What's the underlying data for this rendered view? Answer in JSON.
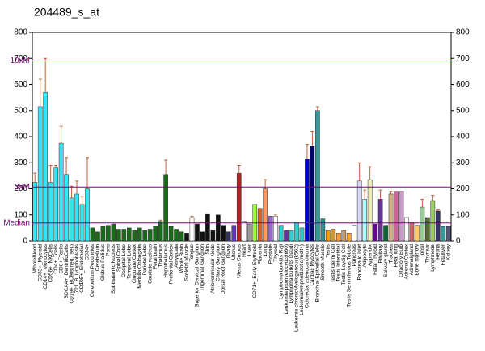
{
  "chart_data": {
    "type": "bar",
    "title": "204489_s_at",
    "categories": [
      "WholeBlood",
      "CD33+_Myeloid",
      "CD14+_Monocytes",
      "CD56+_NKCells",
      "CD4+_Tcells",
      "CD8+_Tcells",
      "BDCA4+_DentriticCells",
      "CD19+_BCells(neg._sel.)",
      "721_B_lymphoblasts",
      "CD105+_Endothelial",
      "CD34+",
      "Cerebellum Peduncles",
      "Cerebellum",
      "Globus Pallidus",
      "Pons",
      "Subthalamic Nucleus",
      "Spinal Cord",
      "Occipital Lobe",
      "Temporal Lobe",
      "Cingulate Cortex",
      "Medulla Oblongata",
      "Parietal Lobe",
      "Caudate nucleus",
      "Fetal brain",
      "Thalamus",
      "Hypothalamus",
      "Prefrontal Cortex",
      "Amygdala",
      "Whole Brain",
      "Skeletal Muscle",
      "Tongue",
      "Superior Cervical Ganglion",
      "Trigeminal Ganglion",
      "Skin",
      "Atrioventricular Node",
      "Ciliary Ganglion",
      "Dorsal Root Ganglion",
      "Ovary",
      "Uterus",
      "Uterus Corpus",
      "Heart",
      "Liver",
      "CD71+_Early Erythroid",
      "Placenta",
      "Lung",
      "Prostate",
      "Thyroid",
      "Lymphoma burkitts Raji",
      "Leukemia promyelocytic(hl60)",
      "Lymphoma burkitts Daudi",
      "Leukemia chronicMyelogenous(k562)",
      "Leukemialymphoblastic(molt4)",
      "Colorectal adenocarcinoma",
      "Cardiac Myocytes",
      "Bronchial Epithelial Cells",
      "Smooth Muscle",
      "Testis",
      "Testis Germ Cell",
      "Testis Interstitial",
      "Testis Leydig Cell",
      "Testis Seminiferous Tubule",
      "Pancreas",
      "Pancreatic Islet",
      "Adipocyte",
      "Appendix",
      "Fetal Thyroid",
      "Pituitary",
      "Salivary gland",
      "Trachea",
      "Fetal lung",
      "Olfactory Bulb",
      "Adrenal Cortex",
      "Adrenalgland",
      "Bone marrow",
      "Tonsil",
      "Thymus",
      "Lymphnode",
      "Retina",
      "Fetalliver",
      "Kidney"
    ],
    "values": [
      225,
      515,
      570,
      225,
      280,
      375,
      255,
      165,
      180,
      140,
      200,
      50,
      35,
      55,
      60,
      65,
      45,
      45,
      50,
      40,
      50,
      40,
      45,
      55,
      75,
      255,
      55,
      45,
      35,
      30,
      90,
      65,
      35,
      105,
      40,
      100,
      60,
      35,
      60,
      260,
      75,
      65,
      140,
      125,
      200,
      95,
      95,
      60,
      40,
      40,
      70,
      50,
      315,
      365,
      500,
      85,
      40,
      45,
      30,
      40,
      30,
      60,
      230,
      160,
      235,
      65,
      160,
      60,
      180,
      190,
      190,
      90,
      70,
      60,
      130,
      90,
      155,
      115,
      55,
      55
    ],
    "errors": [
      35,
      105,
      130,
      65,
      10,
      65,
      65,
      45,
      50,
      30,
      120,
      null,
      null,
      null,
      null,
      null,
      null,
      null,
      null,
      null,
      null,
      null,
      null,
      null,
      5,
      55,
      null,
      null,
      null,
      null,
      5,
      null,
      null,
      null,
      null,
      null,
      null,
      null,
      null,
      30,
      null,
      null,
      null,
      null,
      35,
      null,
      5,
      null,
      null,
      null,
      null,
      null,
      55,
      55,
      15,
      null,
      null,
      null,
      null,
      null,
      null,
      null,
      70,
      35,
      50,
      null,
      35,
      null,
      10,
      null,
      null,
      null,
      null,
      null,
      30,
      null,
      20,
      5,
      null,
      null
    ],
    "colors": [
      "#33e6f2",
      "#33e6f2",
      "#33e6f2",
      "#33e6f2",
      "#33e6f2",
      "#33e6f2",
      "#33e6f2",
      "#33e6f2",
      "#33e6f2",
      "#33e6f2",
      "#33e6f2",
      "#1a6b1a",
      "#1a6b1a",
      "#1a6b1a",
      "#1a6b1a",
      "#1a6b1a",
      "#1a6b1a",
      "#1a6b1a",
      "#1a6b1a",
      "#1a6b1a",
      "#1a6b1a",
      "#1a6b1a",
      "#1a6b1a",
      "#1a6b1a",
      "#1a6b1a",
      "#1a6b1a",
      "#1a6b1a",
      "#1a6b1a",
      "#1a6b1a",
      "#111111",
      "#ffffff",
      "#111111",
      "#111111",
      "#111111",
      "#111111",
      "#111111",
      "#111111",
      "#333366",
      "#6633cc",
      "#b22222",
      "#ffffff",
      "#999999",
      "#99ff33",
      "#cc6633",
      "#ff9966",
      "#9966cc",
      "#ffffff",
      "#33cccc",
      "#663399",
      "#33cccc",
      "#33cccc",
      "#33cccc",
      "#0000cc",
      "#000066",
      "#33999a",
      "#2e8b8b",
      "#ff9900",
      "#cc9933",
      "#ff9933",
      "#cc9966",
      "#ffaa33",
      "#ffffff",
      "#d8d8f0",
      "#aaffff",
      "#eeeebb",
      "#660099",
      "#663399",
      "#006633",
      "#d2b48c",
      "#cc6699",
      "#cc99cc",
      "#ffffff",
      "#cc6666",
      "#ffcc66",
      "#99cc99",
      "#556b2f",
      "#99cc66",
      "#333366",
      "#339999",
      "#555577"
    ],
    "ylim": [
      0,
      800
    ],
    "yticks": [
      0,
      100,
      200,
      300,
      400,
      500,
      600,
      700,
      800
    ],
    "y2lim": [
      0,
      800
    ],
    "y2ticks": [
      0,
      100,
      200,
      300,
      400,
      500,
      600,
      700,
      800
    ],
    "reference_lines": [
      {
        "label": "10xM",
        "value": 690
      },
      {
        "label": "3xM",
        "value": 207
      },
      {
        "label": "Median",
        "value": 69
      }
    ]
  }
}
